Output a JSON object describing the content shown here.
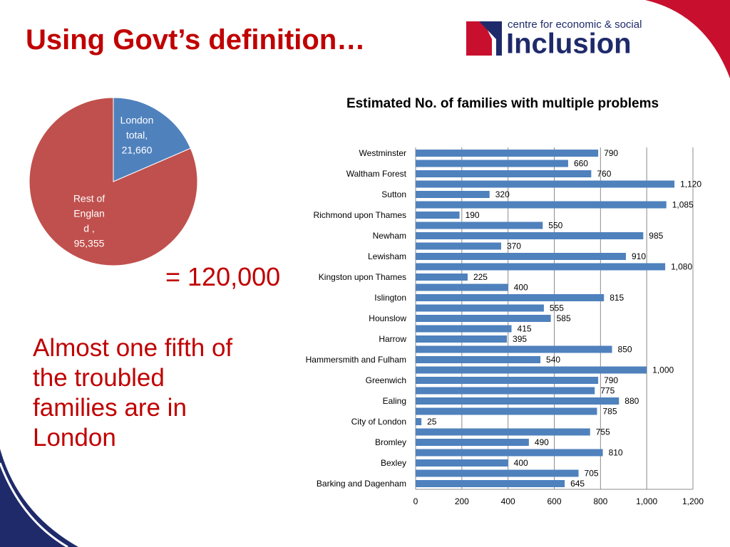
{
  "slide": {
    "title": "Using Govt’s definition…",
    "logo_top": "centre for economic & social",
    "logo_main": "Inclusion",
    "total": "= 120,000",
    "note": "Almost one fifth of the troubled families are in London"
  },
  "chart_data": [
    {
      "type": "pie",
      "categories": [
        [
          "London",
          "total,"
        ],
        [
          "Rest of",
          "Englan",
          "d ,"
        ]
      ],
      "values": [
        21660,
        95355
      ],
      "value_labels": [
        "21,660",
        "95,355"
      ],
      "colors": [
        "#4f81bd",
        "#c0504d"
      ]
    },
    {
      "type": "bar",
      "orientation": "horizontal",
      "title": "Estimated No. of families with multiple problems",
      "categories": [
        "Westminster",
        null,
        "Waltham Forest",
        null,
        "Sutton",
        null,
        "Richmond upon Thames",
        null,
        "Newham",
        null,
        "Lewisham",
        null,
        "Kingston upon Thames",
        null,
        "Islington",
        null,
        "Hounslow",
        null,
        "Harrow",
        null,
        "Hammersmith and Fulham",
        null,
        "Greenwich",
        null,
        "Ealing",
        null,
        "City of London",
        null,
        "Bromley",
        null,
        "Bexley",
        null,
        "Barking and Dagenham"
      ],
      "values": [
        790,
        660,
        760,
        1120,
        320,
        1085,
        190,
        550,
        985,
        370,
        910,
        1080,
        225,
        400,
        815,
        555,
        585,
        415,
        395,
        850,
        540,
        1000,
        790,
        775,
        880,
        785,
        25,
        755,
        490,
        810,
        400,
        705,
        645
      ],
      "value_labels": [
        "790",
        "660",
        "760",
        "1,120",
        "320",
        "1,085",
        "190",
        "550",
        "985",
        "370",
        "910",
        "1,080",
        "225",
        "400",
        "815",
        "555",
        "585",
        "415",
        "395",
        "850",
        "540",
        "1,000",
        "790",
        "775",
        "880",
        "785",
        "25",
        "755",
        "490",
        "810",
        "400",
        "705",
        "645"
      ],
      "color": "#4f81bd",
      "xlim": [
        0,
        1200
      ],
      "xticks": [
        0,
        200,
        400,
        600,
        800,
        {
          "value": 1000,
          "label": "1,000"
        },
        {
          "value": 1200,
          "label": "1,200"
        }
      ],
      "grid": true
    }
  ]
}
